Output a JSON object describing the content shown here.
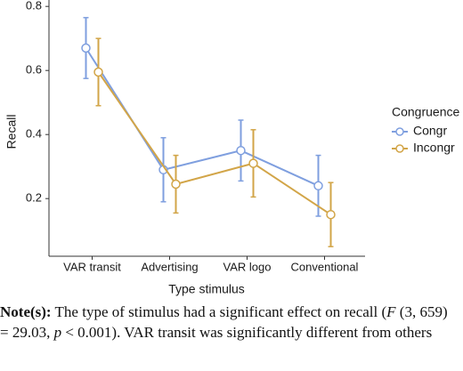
{
  "chart_data": {
    "type": "line",
    "categories": [
      "VAR transit",
      "Advertising",
      "VAR logo",
      "Conventional"
    ],
    "series": [
      {
        "name": "Congr",
        "color": "#7f9fdf",
        "values": [
          0.67,
          0.29,
          0.35,
          0.24
        ],
        "errors": [
          0.095,
          0.1,
          0.095,
          0.095
        ]
      },
      {
        "name": "Incongr",
        "color": "#d2a548",
        "values": [
          0.595,
          0.245,
          0.31,
          0.15
        ],
        "errors": [
          0.105,
          0.09,
          0.105,
          0.1
        ]
      }
    ],
    "ylim": [
      0.02,
      0.82
    ],
    "yticks": [
      0.2,
      0.4,
      0.6,
      0.8
    ],
    "x_label": "Type stimulus",
    "y_label": "Recall",
    "legend_title": "Congruence",
    "legend": "right"
  },
  "note": [
    "Note(s):",
    " The type of stimulus had a significant effect on recall (",
    "F",
    " (3, 659) = 29.03, ",
    "p",
    " < 0.001). VAR transit was significantly different from others"
  ]
}
